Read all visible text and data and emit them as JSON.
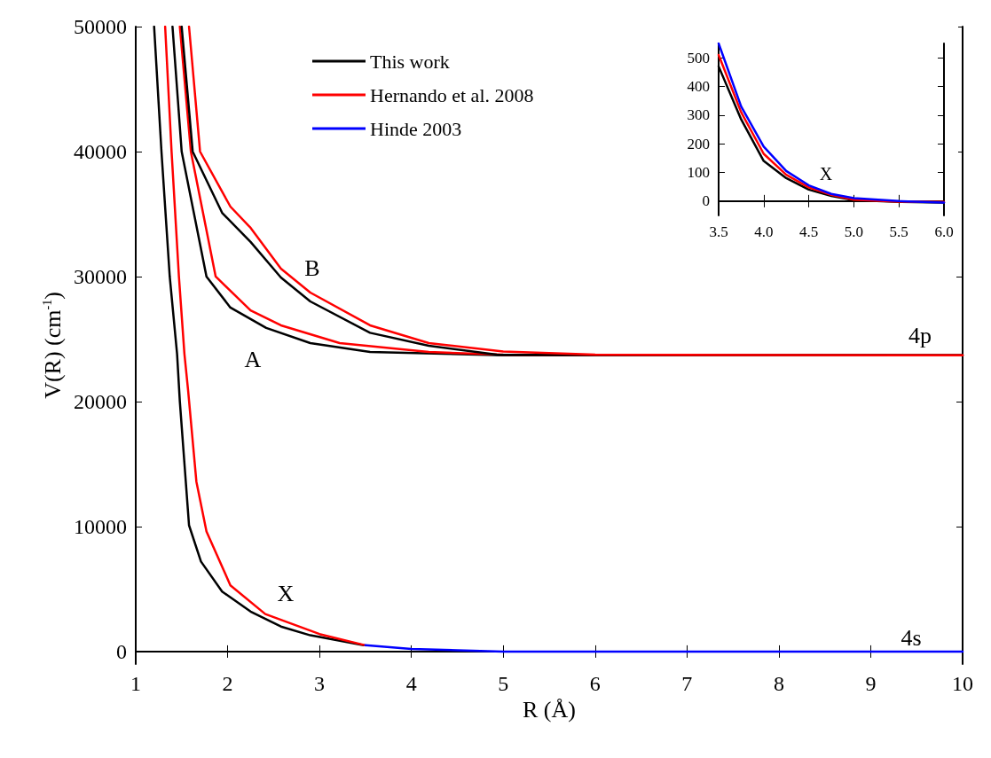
{
  "chart_data": [
    {
      "type": "line",
      "xlabel": "R (Å)",
      "ylabel": "V(R) (cm$^{-1}$)",
      "xlim": [
        1,
        10
      ],
      "ylim": [
        -1000,
        50000
      ],
      "xticks": [
        1,
        2,
        3,
        4,
        5,
        6,
        7,
        8,
        9,
        10
      ],
      "yticks": [
        0,
        10000,
        20000,
        30000,
        40000,
        50000
      ],
      "grid": false,
      "legend": "top",
      "line_style": "solid",
      "marker": "none",
      "series": [
        {
          "name": "This work",
          "color": "#000000",
          "x": [
            1.2,
            1.28,
            1.37,
            1.45,
            1.48,
            1.58,
            1.71,
            1.94,
            2.25,
            2.58,
            2.9,
            3.48
          ],
          "values": [
            50000,
            40000,
            30000,
            23800,
            20000,
            10100,
            7200,
            4800,
            3200,
            2000,
            1300,
            500
          ]
        },
        {
          "name": "Hernando et al. 2008",
          "color": "#ff0000",
          "x": [
            1.32,
            1.39,
            1.47,
            1.53,
            1.57,
            1.66,
            1.77,
            2.03,
            2.41,
            3.0,
            3.5
          ],
          "values": [
            50000,
            40000,
            30000,
            23800,
            20900,
            13600,
            9600,
            5300,
            3000,
            1400,
            500
          ]
        },
        {
          "color": "#000000",
          "x": [
            1.4,
            1.5,
            1.77,
            2.03,
            2.42,
            2.9,
            3.55,
            5,
            10
          ],
          "values": [
            50000,
            40000,
            30000,
            27520,
            25890,
            24680,
            23970,
            23700,
            23700
          ]
        },
        {
          "color": "#ff0000",
          "x": [
            1.48,
            1.6,
            1.87,
            2.25,
            2.58,
            3.22,
            4.19,
            5,
            10
          ],
          "values": [
            50000,
            40000,
            30000,
            27300,
            26100,
            24680,
            23970,
            23750,
            23700
          ]
        },
        {
          "color": "#000000",
          "x": [
            1.5,
            1.62,
            1.94,
            2.25,
            2.58,
            2.9,
            3.55,
            4.19,
            4.93,
            10
          ],
          "values": [
            50000,
            40000,
            35100,
            32770,
            29930,
            28010,
            25500,
            24470,
            23750,
            23700
          ]
        },
        {
          "color": "#ff0000",
          "x": [
            1.58,
            1.7,
            2.03,
            2.25,
            2.58,
            2.9,
            3.55,
            4.19,
            5,
            6,
            10
          ],
          "values": [
            50000,
            40000,
            35600,
            33900,
            30640,
            28720,
            26100,
            24680,
            24000,
            23750,
            23700
          ]
        },
        {
          "name": "Hinde 2003",
          "color": "#0000ff",
          "x": [
            3.5,
            4,
            4.5,
            5,
            10
          ],
          "values": [
            500,
            200,
            100,
            0,
            0
          ]
        }
      ],
      "annotations": [
        "B",
        "A",
        "X",
        "4p",
        "4s"
      ]
    },
    {
      "type": "line",
      "xlim": [
        3.5,
        6
      ],
      "ylim": [
        -50,
        550
      ],
      "xticks": [
        3.5,
        {
          "value": 4,
          "label": "4.0"
        },
        4.5,
        {
          "value": 5,
          "label": "5.0"
        },
        5.5,
        {
          "value": 6,
          "label": "6.0"
        }
      ],
      "yticks": [
        0,
        100,
        200,
        300,
        400,
        500
      ],
      "grid": false,
      "line_style": "solid",
      "marker": "none",
      "series": [
        {
          "color": "#000000",
          "x": [
            3.5,
            3.75,
            4,
            4.25,
            4.5,
            4.75,
            5,
            5.5,
            6
          ],
          "values": [
            470,
            285,
            140,
            80,
            40,
            18,
            3,
            -3,
            -5
          ]
        },
        {
          "color": "#ff0000",
          "x": [
            3.5,
            3.75,
            4,
            4.25,
            4.5,
            4.75,
            5,
            5.5,
            6
          ],
          "values": [
            510,
            310,
            165,
            92,
            48,
            22,
            5,
            -2,
            -3
          ]
        },
        {
          "color": "#0000ff",
          "x": [
            3.5,
            3.75,
            4,
            4.25,
            4.5,
            4.75,
            5,
            5.5,
            6
          ],
          "values": [
            550,
            330,
            190,
            105,
            55,
            25,
            10,
            0,
            -5
          ]
        }
      ],
      "annotations": [
        "X"
      ]
    }
  ]
}
